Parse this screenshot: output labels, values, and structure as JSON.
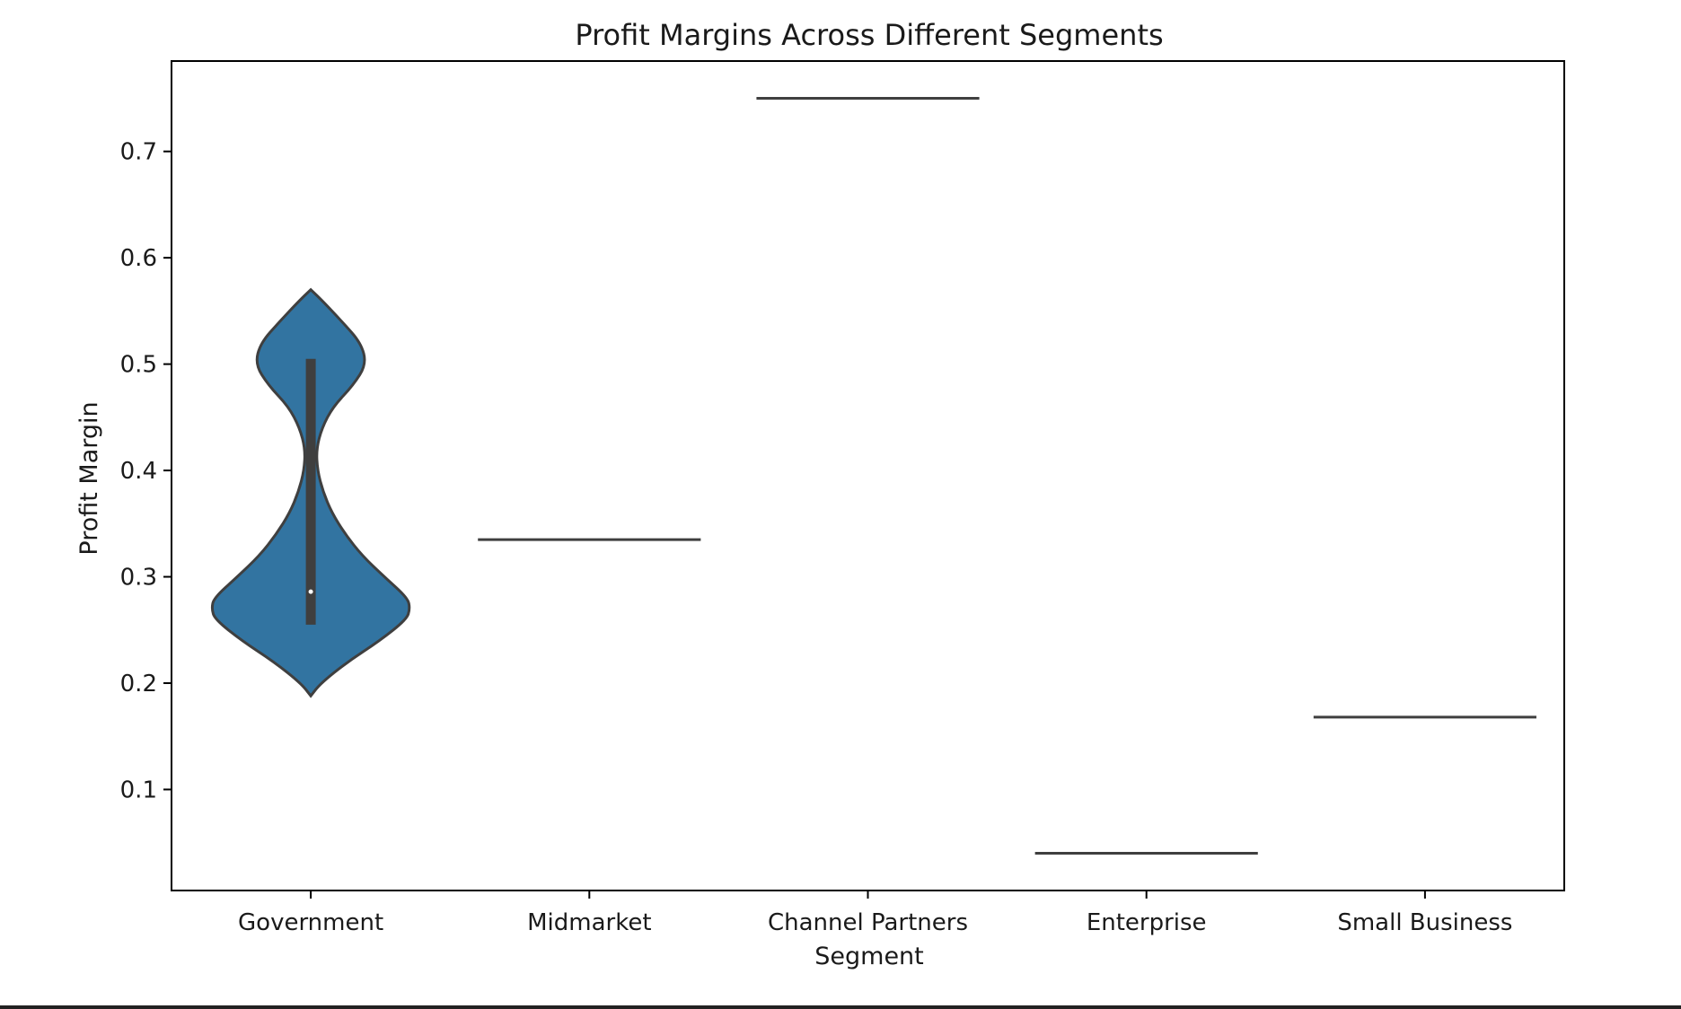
{
  "chart_data": {
    "type": "violin",
    "title": "Profit Margins Across Different Segments",
    "xlabel": "Segment",
    "ylabel": "Profit Margin",
    "categories": [
      "Government",
      "Midmarket",
      "Channel Partners",
      "Enterprise",
      "Small Business"
    ],
    "ylim": [
      0.005,
      0.785
    ],
    "yticks": [
      0.1,
      0.2,
      0.3,
      0.4,
      0.5,
      0.6,
      0.7
    ],
    "ytick_labels": [
      "0.1",
      "0.2",
      "0.3",
      "0.4",
      "0.5",
      "0.6",
      "0.7"
    ],
    "grid": false,
    "color": "#3274a1",
    "edge_color": "#3f3f3f",
    "violins": [
      {
        "category": "Government",
        "kind": "distribution",
        "min": 0.188,
        "max": 0.57,
        "q1": 0.255,
        "median": 0.286,
        "q3": 0.505,
        "whisker_high": 0.505,
        "density_profile": [
          [
            0.188,
            0.0
          ],
          [
            0.2,
            0.09
          ],
          [
            0.22,
            0.33
          ],
          [
            0.24,
            0.62
          ],
          [
            0.26,
            0.86
          ],
          [
            0.27,
            0.89
          ],
          [
            0.28,
            0.87
          ],
          [
            0.3,
            0.66
          ],
          [
            0.32,
            0.46
          ],
          [
            0.34,
            0.31
          ],
          [
            0.36,
            0.19
          ],
          [
            0.38,
            0.11
          ],
          [
            0.4,
            0.06
          ],
          [
            0.42,
            0.05
          ],
          [
            0.44,
            0.1
          ],
          [
            0.46,
            0.2
          ],
          [
            0.48,
            0.38
          ],
          [
            0.5,
            0.5
          ],
          [
            0.52,
            0.45
          ],
          [
            0.54,
            0.28
          ],
          [
            0.56,
            0.1
          ],
          [
            0.57,
            0.0
          ]
        ]
      },
      {
        "category": "Midmarket",
        "kind": "single",
        "value": 0.335
      },
      {
        "category": "Channel Partners",
        "kind": "single",
        "value": 0.75
      },
      {
        "category": "Enterprise",
        "kind": "single",
        "value": 0.04
      },
      {
        "category": "Small Business",
        "kind": "single",
        "value": 0.168
      }
    ]
  }
}
